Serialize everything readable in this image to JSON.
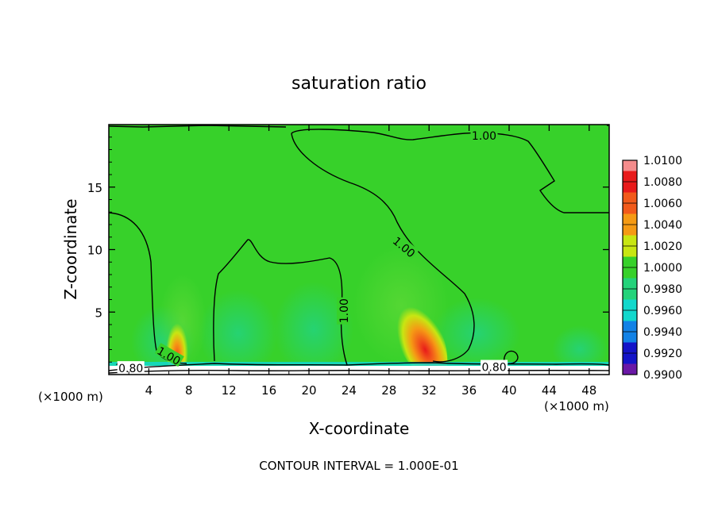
{
  "chart_data": {
    "type": "contour",
    "title": "saturation ratio",
    "xlabel": "X-coordinate",
    "ylabel": "Z-coordinate",
    "x_unit_note": "(×1000 m)",
    "x_unit_note_right": "(×1000 m)",
    "xlim": [
      0,
      50
    ],
    "ylim": [
      0,
      20
    ],
    "x_ticks": [
      "4",
      "8",
      "12",
      "16",
      "20",
      "24",
      "28",
      "32",
      "36",
      "40",
      "44",
      "48"
    ],
    "y_ticks": [
      "5",
      "10",
      "15"
    ],
    "footer": "CONTOUR INTERVAL = 1.000E-01",
    "colorbar": {
      "levels": [
        "1.0100",
        "1.0080",
        "1.0060",
        "1.0040",
        "1.0020",
        "1.0000",
        "0.9980",
        "0.9960",
        "0.9940",
        "0.9920",
        "0.9900"
      ],
      "colors": [
        "#f48c8c",
        "#e81a1a",
        "#f25a1a",
        "#f59a14",
        "#c8e612",
        "#37d12a",
        "#24d37a",
        "#12d8cc",
        "#1282e6",
        "#1414c8",
        "#6a18a6"
      ]
    },
    "contour_labels": [
      {
        "text": "1.00",
        "x": 29.5,
        "y": 10.2,
        "rotate": 40
      },
      {
        "text": "1.00",
        "x": 37.5,
        "y": 19.1,
        "rotate": 0
      },
      {
        "text": "1.00",
        "x": 23.5,
        "y": 5.1,
        "rotate": -90
      },
      {
        "text": "1.00",
        "x": 6.0,
        "y": 1.5,
        "rotate": 30
      },
      {
        "text": "0.80",
        "x": 2.2,
        "y": 0.5,
        "rotate": 0
      },
      {
        "text": "0.80",
        "x": 38.5,
        "y": 0.6,
        "rotate": 0
      }
    ],
    "field_background": "#37d12a",
    "hotspots": [
      {
        "x": 7.0,
        "y": 1.5,
        "peak": "1.0060"
      },
      {
        "x": 31.5,
        "y": 2.0,
        "peak": "1.0080"
      }
    ]
  }
}
